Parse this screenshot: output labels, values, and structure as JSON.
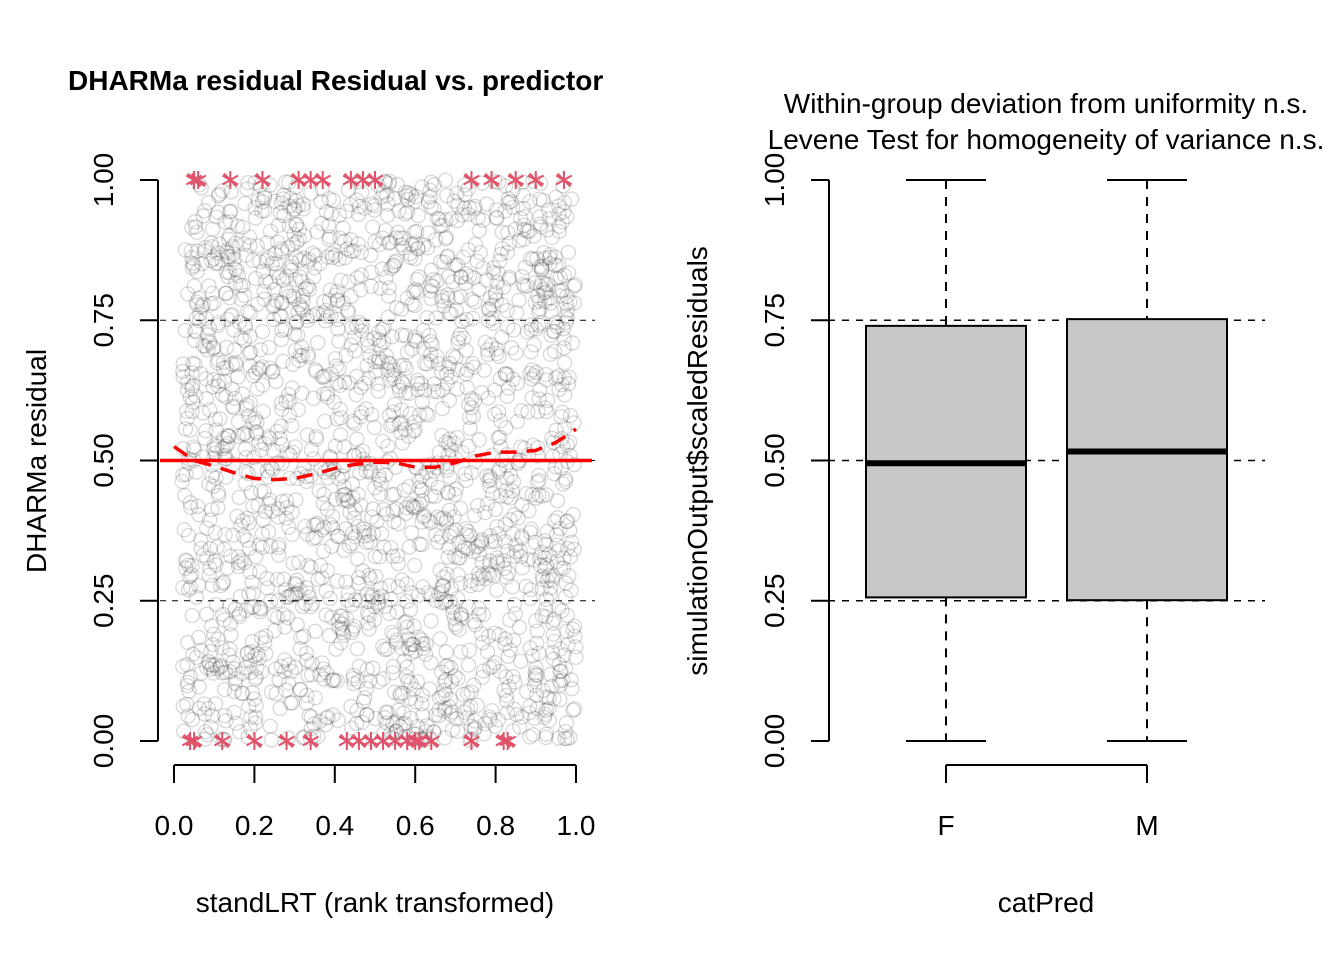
{
  "chart_data": [
    {
      "type": "scatter",
      "title": "DHARMa residual Residual vs. predictor",
      "xlabel": "standLRT (rank transformed)",
      "ylabel": "DHARMa residual",
      "xlim": [
        0.0,
        1.0
      ],
      "ylim": [
        0.0,
        1.0
      ],
      "xticks": [
        "0.0",
        "0.2",
        "0.4",
        "0.6",
        "0.8",
        "1.0"
      ],
      "yticks": [
        "0.00",
        "0.25",
        "0.50",
        "0.75",
        "1.00"
      ],
      "grid_y": [
        0.25,
        0.5,
        0.75
      ],
      "n_points_approx": 2000,
      "reference_line": {
        "y": 0.5,
        "color": "#ff0000"
      },
      "smooth": {
        "x": [
          0.0,
          0.05,
          0.1,
          0.15,
          0.2,
          0.25,
          0.3,
          0.35,
          0.4,
          0.45,
          0.5,
          0.55,
          0.6,
          0.65,
          0.7,
          0.75,
          0.8,
          0.85,
          0.9,
          0.95,
          1.0
        ],
        "y": [
          0.525,
          0.5,
          0.49,
          0.478,
          0.468,
          0.466,
          0.468,
          0.476,
          0.486,
          0.493,
          0.497,
          0.496,
          0.488,
          0.488,
          0.496,
          0.508,
          0.515,
          0.515,
          0.518,
          0.532,
          0.556
        ],
        "color": "#ff0000",
        "style": "dashed"
      },
      "outliers": {
        "color": "#df536b",
        "top": [
          0.05,
          0.06,
          0.14,
          0.22,
          0.31,
          0.34,
          0.37,
          0.44,
          0.47,
          0.5,
          0.74,
          0.79,
          0.85,
          0.9,
          0.97
        ],
        "bottom": [
          0.04,
          0.05,
          0.12,
          0.2,
          0.28,
          0.34,
          0.43,
          0.46,
          0.49,
          0.52,
          0.55,
          0.58,
          0.6,
          0.61,
          0.64,
          0.74,
          0.82,
          0.83
        ]
      }
    },
    {
      "type": "box",
      "title_lines": [
        "Within-group deviation from uniformity n.s.",
        "Levene Test for homogeneity of variance n.s."
      ],
      "xlabel": "catPred",
      "ylabel": "simulationOutput$scaledResiduals",
      "ylim": [
        0.0,
        1.0
      ],
      "yticks": [
        "0.00",
        "0.25",
        "0.50",
        "0.75",
        "1.00"
      ],
      "grid_y": [
        0.25,
        0.5,
        0.75
      ],
      "box_fill": "#c8c8c8",
      "groups": [
        {
          "name": "F",
          "min": 0.0,
          "q1": 0.256,
          "median": 0.495,
          "q3": 0.74,
          "max": 1.0
        },
        {
          "name": "M",
          "min": 0.0,
          "q1": 0.251,
          "median": 0.516,
          "q3": 0.752,
          "max": 1.0
        }
      ]
    }
  ]
}
